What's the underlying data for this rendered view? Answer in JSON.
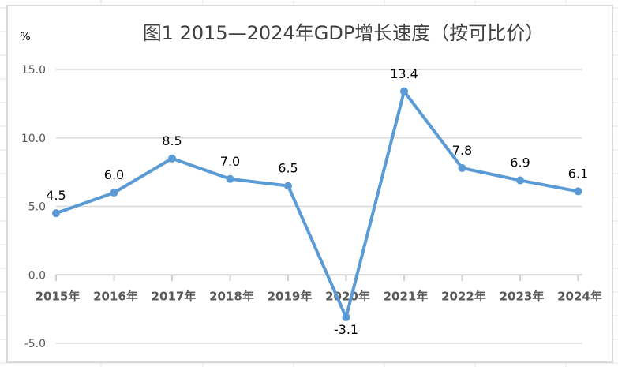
{
  "chart_data": {
    "type": "line",
    "title": "图1  2015—2024年GDP增长速度（按可比价）",
    "ylabel": "%",
    "xlabel": "",
    "categories": [
      "2015年",
      "2016年",
      "2017年",
      "2018年",
      "2019年",
      "2020年",
      "2021年",
      "2022年",
      "2023年",
      "2024年"
    ],
    "values": [
      4.5,
      6.0,
      8.5,
      7.0,
      6.5,
      -3.1,
      13.4,
      7.8,
      6.9,
      6.1
    ],
    "data_labels": [
      "4.5",
      "6.0",
      "8.5",
      "7.0",
      "6.5",
      "-3.1",
      "13.4",
      "7.8",
      "6.9",
      "6.1"
    ],
    "yticks": [
      15.0,
      10.0,
      5.0,
      0.0,
      -5.0
    ],
    "ytick_labels": [
      "15.0",
      "10.0",
      "5.0",
      "0.0",
      "-5.0"
    ],
    "ylim": [
      -5,
      15
    ],
    "grid": true,
    "legend": "none",
    "series_color": "#5B9BD5"
  }
}
